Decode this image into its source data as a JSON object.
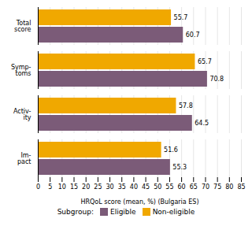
{
  "chart_data": {
    "type": "bar",
    "orientation": "horizontal",
    "xlabel": "HRQoL score (mean, %) (Bulgaria ES)",
    "categories": [
      "Total\nscore",
      "Symp-\ntoms",
      "Activ-\nity",
      "Im-\npact"
    ],
    "series": [
      {
        "name": "Eligible",
        "color": "#7B5B78",
        "values": [
          60.7,
          70.8,
          64.5,
          55.3
        ]
      },
      {
        "name": "Non-eligible",
        "color": "#F0A800",
        "values": [
          55.7,
          65.7,
          57.8,
          51.6
        ]
      }
    ],
    "xlim": [
      0,
      85
    ],
    "xticks": [
      0,
      5,
      10,
      15,
      20,
      25,
      30,
      35,
      40,
      45,
      50,
      55,
      60,
      65,
      70,
      75,
      80,
      85
    ],
    "grid": true,
    "data_labels": true,
    "legend": "bottom",
    "legend_title": "Subgroup:"
  }
}
